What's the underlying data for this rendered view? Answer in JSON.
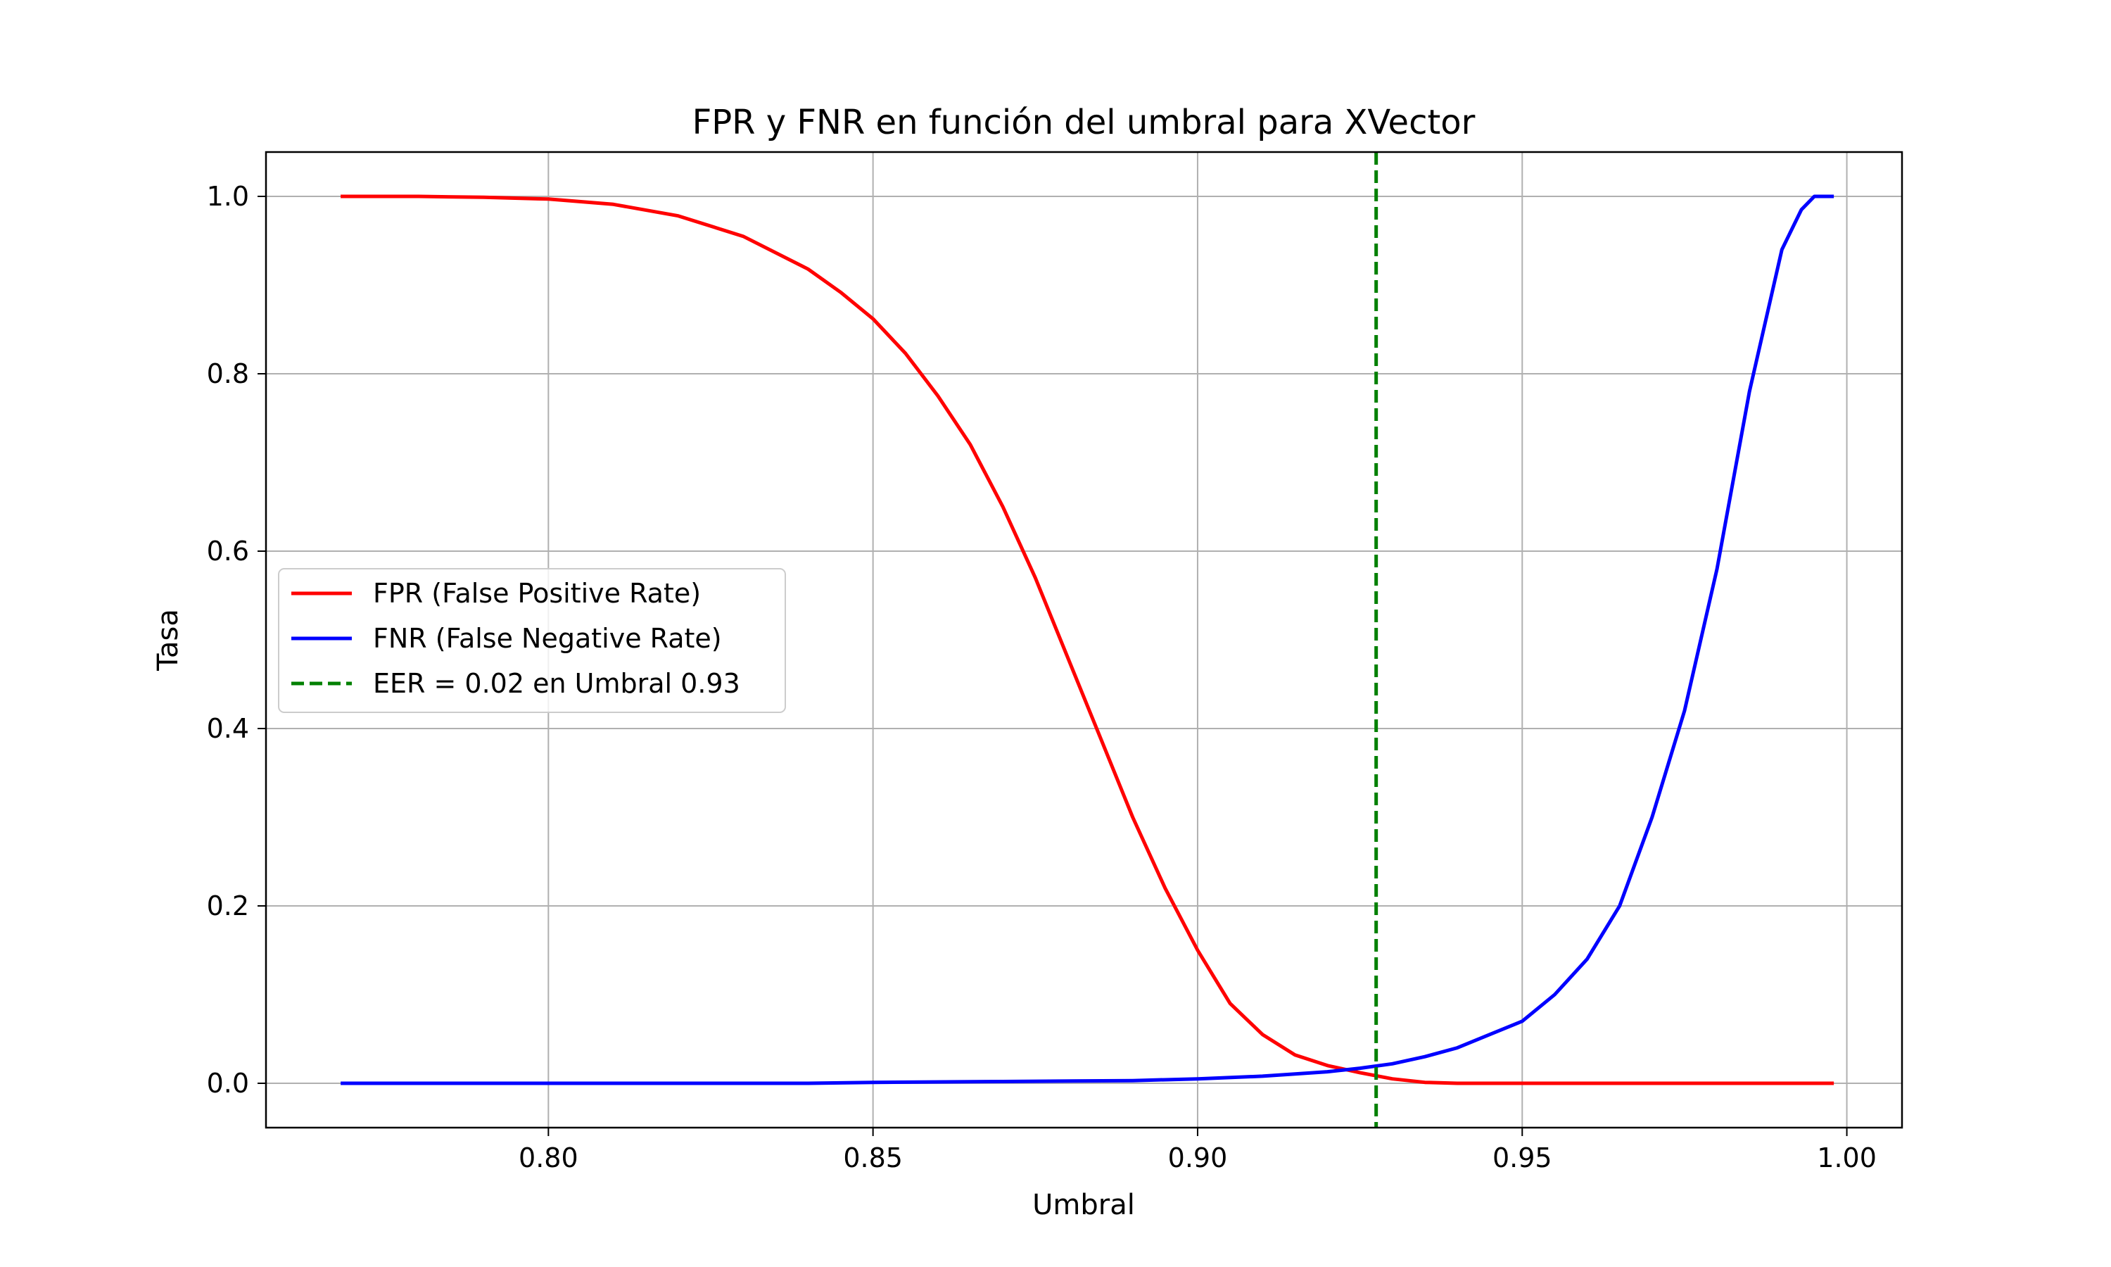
{
  "chart_data": {
    "type": "line",
    "title": "FPR y FNR en función del umbral para XVector",
    "xlabel": "Umbral",
    "ylabel": "Tasa",
    "xlim": [
      0.7565,
      1.0085
    ],
    "ylim": [
      -0.05,
      1.05
    ],
    "xticks": [
      0.8,
      0.85,
      0.9,
      0.95,
      1.0
    ],
    "xtick_labels": [
      "0.80",
      "0.85",
      "0.90",
      "0.95",
      "1.00"
    ],
    "yticks": [
      0.0,
      0.2,
      0.4,
      0.6,
      0.8,
      1.0
    ],
    "ytick_labels": [
      "0.0",
      "0.2",
      "0.4",
      "0.6",
      "0.8",
      "1.0"
    ],
    "grid": true,
    "legend_position": "center-left",
    "series": [
      {
        "name": "FPR (False Positive Rate)",
        "color": "#ff0000",
        "style": "solid",
        "x": [
          0.768,
          0.78,
          0.79,
          0.8,
          0.81,
          0.82,
          0.83,
          0.84,
          0.845,
          0.85,
          0.855,
          0.86,
          0.865,
          0.87,
          0.875,
          0.88,
          0.885,
          0.89,
          0.895,
          0.9,
          0.905,
          0.91,
          0.915,
          0.92,
          0.925,
          0.93,
          0.935,
          0.94,
          0.95,
          0.96,
          0.97,
          0.98,
          0.99,
          0.998
        ],
        "y": [
          1.0,
          1.0,
          0.999,
          0.997,
          0.991,
          0.978,
          0.955,
          0.918,
          0.892,
          0.862,
          0.823,
          0.775,
          0.72,
          0.65,
          0.57,
          0.48,
          0.39,
          0.3,
          0.22,
          0.15,
          0.09,
          0.055,
          0.032,
          0.02,
          0.012,
          0.005,
          0.001,
          0.0,
          0.0,
          0.0,
          0.0,
          0.0,
          0.0,
          0.0
        ]
      },
      {
        "name": "FNR (False Negative Rate)",
        "color": "#0000ff",
        "style": "solid",
        "x": [
          0.768,
          0.8,
          0.84,
          0.85,
          0.87,
          0.89,
          0.9,
          0.91,
          0.92,
          0.925,
          0.93,
          0.935,
          0.94,
          0.945,
          0.95,
          0.955,
          0.96,
          0.965,
          0.97,
          0.975,
          0.98,
          0.985,
          0.99,
          0.993,
          0.995,
          0.998
        ],
        "y": [
          0.0,
          0.0,
          0.0,
          0.001,
          0.002,
          0.003,
          0.005,
          0.008,
          0.013,
          0.017,
          0.022,
          0.03,
          0.04,
          0.055,
          0.07,
          0.1,
          0.14,
          0.2,
          0.3,
          0.42,
          0.58,
          0.78,
          0.94,
          0.985,
          1.0,
          1.0
        ]
      },
      {
        "name": "EER = 0.02 en Umbral 0.93",
        "color": "#008000",
        "style": "dashed",
        "vline_x": 0.9275
      }
    ]
  }
}
